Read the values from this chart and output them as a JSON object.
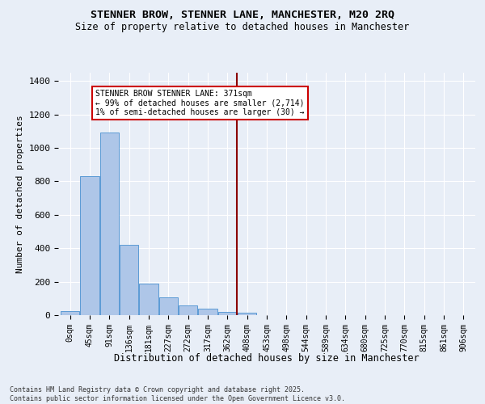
{
  "title": "STENNER BROW, STENNER LANE, MANCHESTER, M20 2RQ",
  "subtitle": "Size of property relative to detached houses in Manchester",
  "xlabel": "Distribution of detached houses by size in Manchester",
  "ylabel": "Number of detached properties",
  "categories": [
    "0sqm",
    "45sqm",
    "91sqm",
    "136sqm",
    "181sqm",
    "227sqm",
    "272sqm",
    "317sqm",
    "362sqm",
    "408sqm",
    "453sqm",
    "498sqm",
    "544sqm",
    "589sqm",
    "634sqm",
    "680sqm",
    "725sqm",
    "770sqm",
    "815sqm",
    "861sqm",
    "906sqm"
  ],
  "values": [
    25,
    830,
    1090,
    420,
    190,
    105,
    60,
    38,
    20,
    13,
    0,
    0,
    0,
    0,
    0,
    0,
    0,
    0,
    0,
    0,
    0
  ],
  "bar_color": "#aec6e8",
  "bar_edge_color": "#5b9bd5",
  "vline_x": 8.5,
  "vline_color": "#8b0000",
  "annotation_text": "STENNER BROW STENNER LANE: 371sqm\n← 99% of detached houses are smaller (2,714)\n1% of semi-detached houses are larger (30) →",
  "annotation_box_color": "#ffffff",
  "annotation_box_edge_color": "#cc0000",
  "ylim": [
    0,
    1450
  ],
  "background_color": "#e8eef7",
  "grid_color": "#ffffff",
  "footnote": "Contains HM Land Registry data © Crown copyright and database right 2025.\nContains public sector information licensed under the Open Government Licence v3.0."
}
